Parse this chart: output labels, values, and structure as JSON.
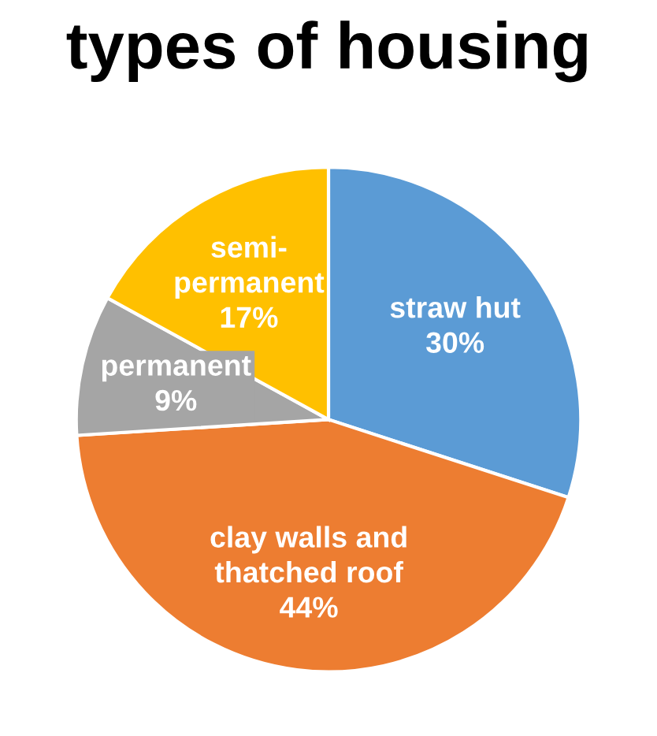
{
  "chart_data": {
    "type": "pie",
    "title": "types of housing",
    "categories": [
      "straw hut",
      "clay walls and\nthatched roof",
      "permanent",
      "semi-\npermanent"
    ],
    "values": [
      30,
      44,
      9,
      17
    ],
    "value_labels": [
      "30%",
      "44%",
      "9%",
      "17%"
    ],
    "colors": [
      "#5b9bd5",
      "#ed7d31",
      "#a5a5a5",
      "#ffc000"
    ]
  }
}
